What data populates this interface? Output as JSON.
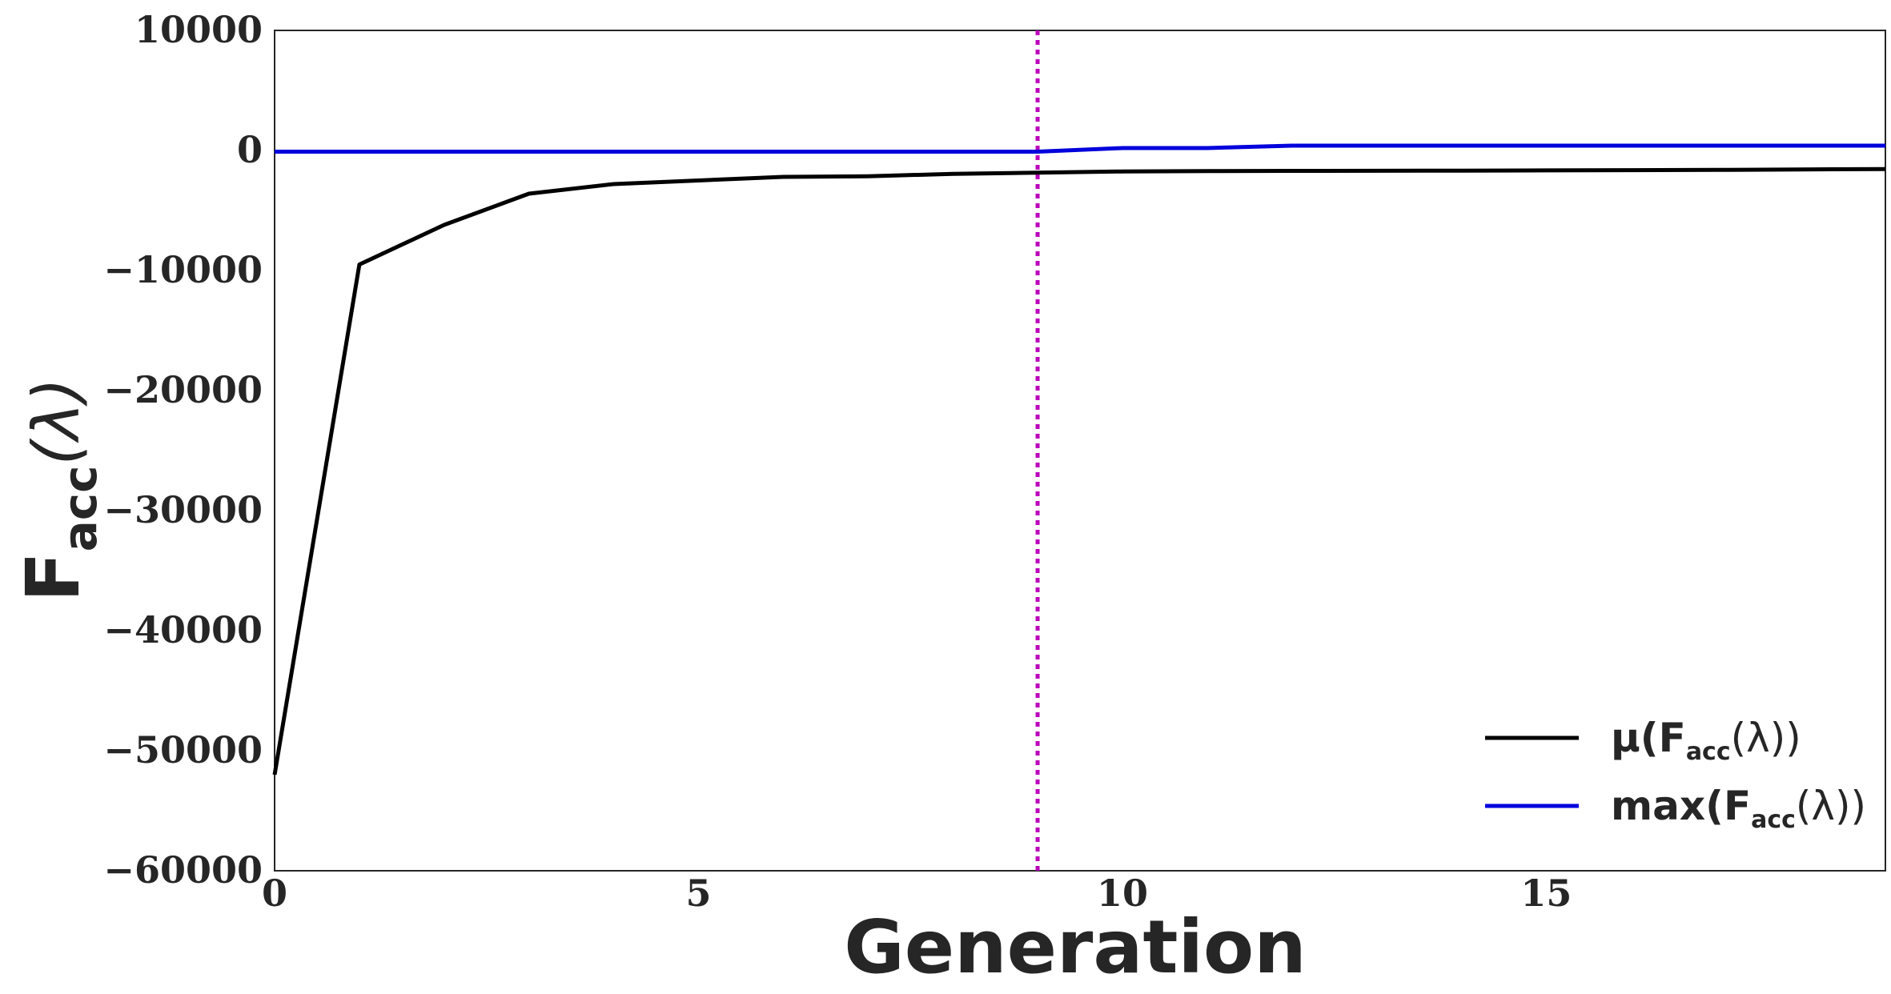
{
  "chart_data": {
    "type": "line",
    "xlabel": "Generation",
    "ylabel": {
      "main": "F",
      "sub": "acc",
      "suffix": "(λ)"
    },
    "xlim": [
      0,
      19
    ],
    "ylim": [
      -60000,
      10000
    ],
    "x_ticks": [
      0,
      5,
      10,
      15
    ],
    "y_ticks": [
      10000,
      0,
      -10000,
      -20000,
      -30000,
      -40000,
      -50000,
      -60000
    ],
    "x_tick_labels": [
      "0",
      "5",
      "10",
      "15"
    ],
    "y_tick_labels": [
      "10000",
      "0",
      "−10000",
      "−20000",
      "−30000",
      "−40000",
      "−50000",
      "−60000"
    ],
    "x": [
      0,
      1,
      2,
      3,
      4,
      5,
      6,
      7,
      8,
      9,
      10,
      11,
      12,
      13,
      14,
      15,
      16,
      17,
      18,
      19
    ],
    "series": [
      {
        "name": "μ(Facc(λ))",
        "color": "#000000",
        "values": [
          -52000,
          -9500,
          -6200,
          -3600,
          -2800,
          -2500,
          -2200,
          -2150,
          -1950,
          -1850,
          -1750,
          -1720,
          -1700,
          -1690,
          -1680,
          -1660,
          -1640,
          -1620,
          -1580,
          -1550
        ]
      },
      {
        "name": "max(Facc(λ))",
        "color": "#0000dd",
        "values": [
          -100,
          -100,
          -100,
          -100,
          -100,
          -100,
          -100,
          -100,
          -100,
          -100,
          200,
          200,
          400,
          400,
          400,
          400,
          400,
          400,
          400,
          400
        ]
      }
    ],
    "vline": {
      "x": 9,
      "color": "#bb00bb",
      "style": "dotted"
    },
    "legend": {
      "position": "lower-right",
      "entries": [
        {
          "prefix": "μ(",
          "main": "F",
          "sub": "acc",
          "suffix": "(λ))",
          "color": "#000000"
        },
        {
          "prefix": "max(",
          "main": "F",
          "sub": "acc",
          "suffix": "(λ))",
          "color": "#0000dd"
        }
      ]
    },
    "grid": false
  }
}
